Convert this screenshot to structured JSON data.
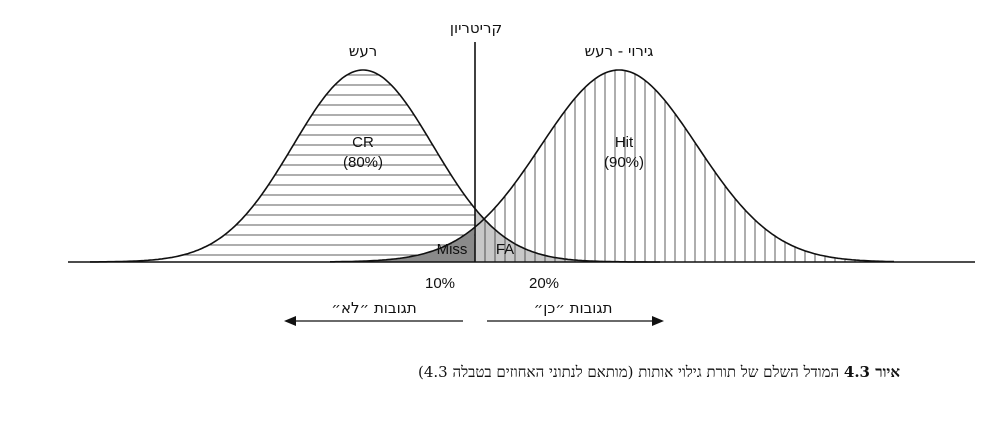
{
  "diagram": {
    "criterion_label": "קריטריון",
    "noise_label": "רעש",
    "signal_label": "גירוי - רעש",
    "cr_label": "CR",
    "cr_pct": "(80%)",
    "hit_label": "Hit",
    "hit_pct": "(90%)",
    "miss_label": "Miss",
    "fa_label": "FA",
    "miss_pct": "10%",
    "fa_pct": "20%",
    "no_response": "תגובות ״לא״",
    "yes_response": "תגובות ״כן״"
  },
  "caption": {
    "prefix": "איור 4.3",
    "text": " המודל השלם של תורת גילוי אותות (מותאם לנתוני האחוזים בטבלה 4.3)"
  },
  "colors": {
    "miss_fill": "#8a8a8a",
    "fa_fill": "#c8c8c8",
    "line": "#111111"
  }
}
